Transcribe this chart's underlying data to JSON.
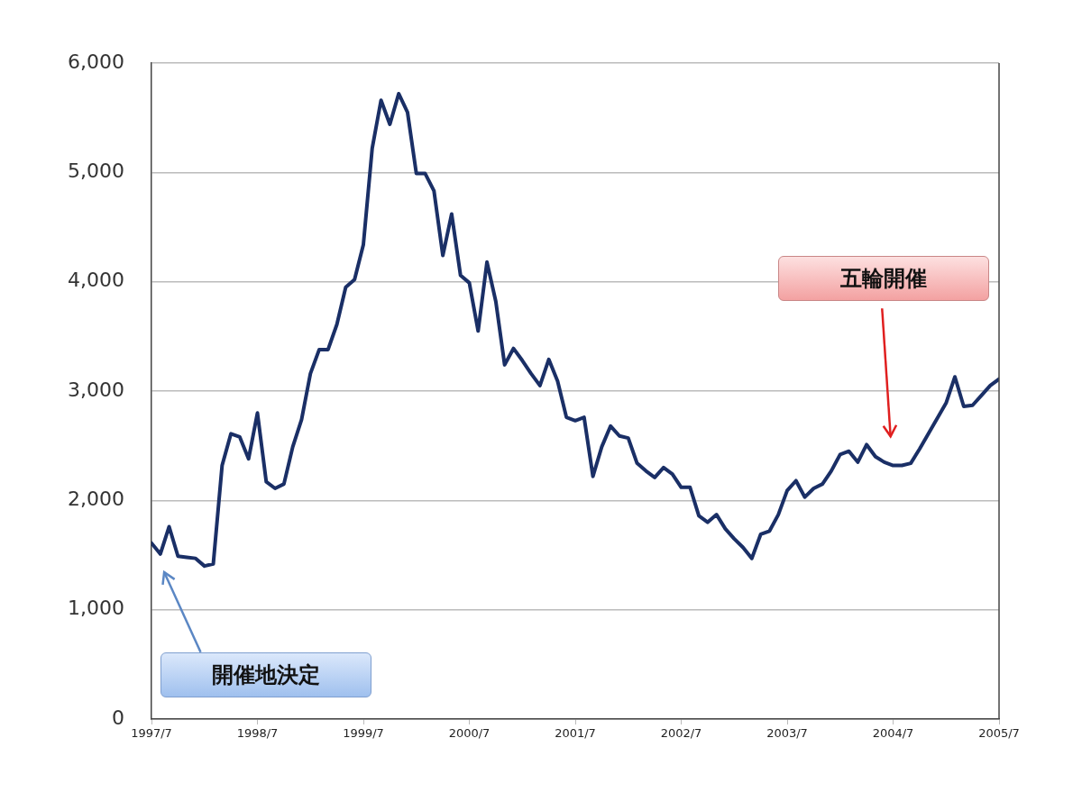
{
  "chart_data": {
    "type": "line",
    "x": [
      "1997-07",
      "1997-08",
      "1997-09",
      "1997-10",
      "1997-11",
      "1997-12",
      "1998-01",
      "1998-02",
      "1998-03",
      "1998-04",
      "1998-05",
      "1998-06",
      "1998-07",
      "1998-08",
      "1998-09",
      "1998-10",
      "1998-11",
      "1998-12",
      "1999-01",
      "1999-02",
      "1999-03",
      "1999-04",
      "1999-05",
      "1999-06",
      "1999-07",
      "1999-08",
      "1999-09",
      "1999-10",
      "1999-11",
      "1999-12",
      "2000-01",
      "2000-02",
      "2000-03",
      "2000-04",
      "2000-05",
      "2000-06",
      "2000-07",
      "2000-08",
      "2000-09",
      "2000-10",
      "2000-11",
      "2000-12",
      "2001-01",
      "2001-02",
      "2001-03",
      "2001-04",
      "2001-05",
      "2001-06",
      "2001-07",
      "2001-08",
      "2001-09",
      "2001-10",
      "2001-11",
      "2001-12",
      "2002-01",
      "2002-02",
      "2002-03",
      "2002-04",
      "2002-05",
      "2002-06",
      "2002-07",
      "2002-08",
      "2002-09",
      "2002-10",
      "2002-11",
      "2002-12",
      "2003-01",
      "2003-02",
      "2003-03",
      "2003-04",
      "2003-05",
      "2003-06",
      "2003-07",
      "2003-08",
      "2003-09",
      "2003-10",
      "2003-11",
      "2003-12",
      "2004-01",
      "2004-02",
      "2004-03",
      "2004-04",
      "2004-05",
      "2004-06",
      "2004-07",
      "2004-08",
      "2004-09",
      "2004-10",
      "2004-11",
      "2004-12",
      "2005-01",
      "2005-02",
      "2005-03",
      "2005-04",
      "2005-05",
      "2005-06",
      "2005-07"
    ],
    "series": [
      {
        "color": "#1a2f66",
        "values": [
          1610,
          1510,
          1760,
          1490,
          1480,
          1470,
          1400,
          1420,
          2320,
          2610,
          2580,
          2380,
          2800,
          2170,
          2110,
          2150,
          2490,
          2740,
          3160,
          3380,
          3380,
          3610,
          3950,
          4020,
          4340,
          5220,
          5660,
          5440,
          5720,
          5550,
          4990,
          4990,
          4830,
          4240,
          4620,
          4060,
          3990,
          3550,
          4180,
          3820,
          3240,
          3390,
          3280,
          3160,
          3050,
          3290,
          3090,
          2760,
          2730,
          2760,
          2220,
          2490,
          2680,
          2590,
          2570,
          2340,
          2270,
          2210,
          2300,
          2240,
          2120,
          2120,
          1860,
          1800,
          1870,
          1740,
          1650,
          1570,
          1470,
          1690,
          1720,
          1870,
          2090,
          2180,
          2030,
          2110,
          2150,
          2270,
          2420,
          2450,
          2350,
          2510,
          2400,
          2350,
          2320,
          2320,
          2340,
          2470,
          2610,
          2750,
          2890,
          3130,
          2860,
          2870,
          2960,
          3050,
          3110
        ]
      }
    ],
    "xlim": [
      "1997-07",
      "2005-07"
    ],
    "xticks": [
      {
        "value": "1997-07",
        "label": "1997/7"
      },
      {
        "value": "1998-07",
        "label": "1998/7"
      },
      {
        "value": "1999-07",
        "label": "1999/7"
      },
      {
        "value": "2000-07",
        "label": "2000/7"
      },
      {
        "value": "2001-07",
        "label": "2001/7"
      },
      {
        "value": "2002-07",
        "label": "2002/7"
      },
      {
        "value": "2003-07",
        "label": "2003/7"
      },
      {
        "value": "2004-07",
        "label": "2004/7"
      },
      {
        "value": "2005-07",
        "label": "2005/7"
      }
    ],
    "ylim": [
      0,
      6000
    ],
    "yticks": [
      0,
      {
        "value": 1000,
        "label": "1,000"
      },
      {
        "value": 2000,
        "label": "2,000"
      },
      {
        "value": 3000,
        "label": "3,000"
      },
      {
        "value": 4000,
        "label": "4,000"
      },
      {
        "value": 5000,
        "label": "5,000"
      },
      {
        "value": 6000,
        "label": "6,000"
      }
    ],
    "grid": "y",
    "legend": false,
    "marker": "none",
    "line_style": "solid",
    "annotations": [
      "開催地決定",
      "五輪開催"
    ]
  }
}
